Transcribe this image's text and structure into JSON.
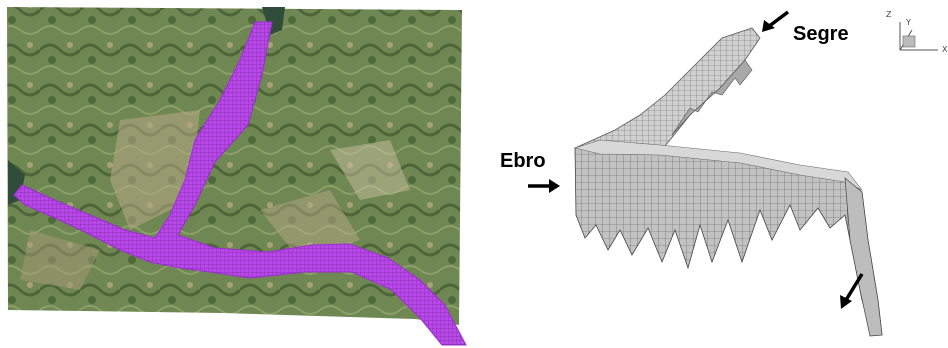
{
  "panels": {
    "left": {
      "type": "satellite-image-with-mesh-overlay",
      "mesh_color": "#b040e0"
    },
    "right": {
      "type": "3d-mesh-wireframe"
    }
  },
  "labels": {
    "segre": "Segre",
    "ebro": "Ebro"
  },
  "axes_triad": {
    "z": "Z",
    "y": "Y",
    "x": "X"
  },
  "arrows": [
    {
      "name": "segre-inflow",
      "icon": "arrow-down-left-icon"
    },
    {
      "name": "ebro-inflow",
      "icon": "arrow-right-icon"
    },
    {
      "name": "outflow",
      "icon": "arrow-down-left-icon"
    }
  ],
  "colors": {
    "terrain_green": "#5f7a47",
    "terrain_tan": "#b8a785",
    "mesh_purple": "#b040e0",
    "model_grey": "#b3b3b3"
  }
}
